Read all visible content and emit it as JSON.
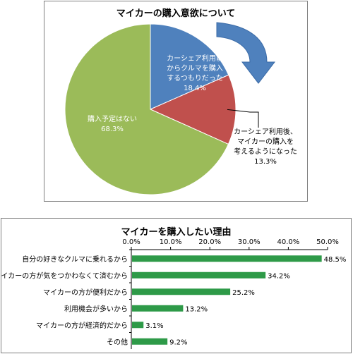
{
  "pie_title": "マイカーの購入意欲について",
  "bar_title": "マイカーを購入したい理由",
  "colors": {
    "blue": "#4f81bd",
    "red": "#c0504d",
    "green": "#9bbb59",
    "bar": "#2e9a48",
    "grid": "#000000"
  },
  "chart_data": [
    {
      "type": "pie",
      "title": "マイカーの購入意欲について",
      "slices": [
        {
          "label": [
            "カーシェア利用前",
            "からクルマを購入",
            "するつもりだった"
          ],
          "pct_label": "18.4%",
          "value": 18.4,
          "color": "#4f81bd"
        },
        {
          "label": [
            "カーシェア利用後、",
            "マイカーの購入を",
            "考えるようになった"
          ],
          "pct_label": "13.3%",
          "value": 13.3,
          "color": "#c0504d"
        },
        {
          "label": [
            "購入予定はない"
          ],
          "pct_label": "68.3%",
          "value": 68.3,
          "color": "#9bbb59"
        }
      ]
    },
    {
      "type": "bar",
      "orientation": "horizontal",
      "title": "マイカーを購入したい理由",
      "categories": [
        "自分の好きなクルマに乗れるから",
        "マイカーの方が気をつかわなくて済むから",
        "マイカーの方が便利だから",
        "利用機会が多いから",
        "マイカーの方が経済的だから",
        "その他"
      ],
      "values": [
        48.5,
        34.2,
        25.2,
        13.2,
        3.1,
        9.2
      ],
      "value_labels": [
        "48.5%",
        "34.2%",
        "25.2%",
        "13.2%",
        "3.1%",
        "9.2%"
      ],
      "xlim": [
        0,
        50
      ],
      "ticks": [
        0,
        10,
        20,
        30,
        40,
        50
      ],
      "tick_labels": [
        "0.0%",
        "10.0%",
        "20.0%",
        "30.0%",
        "40.0%",
        "50.0%"
      ],
      "grid": false
    }
  ]
}
